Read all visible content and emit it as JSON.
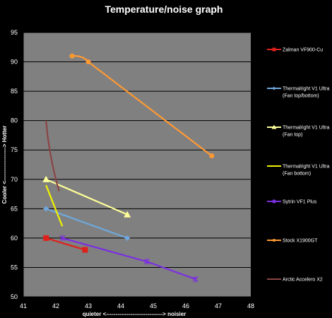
{
  "chart_data": {
    "type": "line",
    "title": "Temperature/noise graph",
    "xlabel": "quieter <------------------------------> noisier",
    "ylabel": "Cooler <------------------> Hotter",
    "xlim": [
      41,
      48
    ],
    "ylim": [
      50,
      95
    ],
    "x_ticks": [
      41,
      42,
      43,
      44,
      45,
      46,
      47,
      48
    ],
    "y_ticks": [
      50,
      55,
      60,
      65,
      70,
      75,
      80,
      85,
      90,
      95
    ],
    "grid": true,
    "legend_position": "right",
    "plot_background": "#808080",
    "series": [
      {
        "name": "Zalman VF900-Cu",
        "legend": [
          "Zalman VF900-Cu"
        ],
        "color": "#e0201a",
        "marker": "square",
        "x": [
          41.7,
          42.9
        ],
        "y": [
          60,
          58
        ]
      },
      {
        "name": "Thermalright V1 Ultra (Fan top/bottom)",
        "legend": [
          "Thermalright V1 Ultra",
          "(Fan top/bottom)"
        ],
        "color": "#6fa8dc",
        "marker": "diamond",
        "x": [
          41.7,
          44.2
        ],
        "y": [
          65,
          60
        ]
      },
      {
        "name": "Thermalright V1 Ultra (Fan top)",
        "legend": [
          "Thermalright V1 Ultra",
          "(Fan top)"
        ],
        "color": "#ffff99",
        "marker": "triangle",
        "x": [
          41.7,
          44.2
        ],
        "y": [
          70,
          64
        ]
      },
      {
        "name": "Thermalright V1 Ultra (Fan bottom)",
        "legend": [
          "Thermalright V1 Ultra",
          "(Fan bottom)"
        ],
        "color": "#f2f200",
        "marker": "none",
        "x": [
          41.7,
          42.2
        ],
        "y": [
          69,
          62
        ]
      },
      {
        "name": "Sytrin VF1 Plus",
        "legend": [
          "Sytrin VF1 Plus"
        ],
        "color": "#7b2fe0",
        "marker": "star",
        "x": [
          42.2,
          44.8,
          46.3
        ],
        "y": [
          60,
          56,
          53
        ]
      },
      {
        "name": "Stock X1900GT",
        "legend": [
          "Stock X1900GT"
        ],
        "color": "#ff9933",
        "marker": "circle",
        "x": [
          42.5,
          43.0,
          46.8
        ],
        "y": [
          91,
          90,
          74
        ]
      },
      {
        "name": "Arctic Accelero X2",
        "legend": [
          "Arctic Accelero X2"
        ],
        "color": "#8b4545",
        "marker": "none",
        "x": [
          41.7,
          42.1
        ],
        "y": [
          80,
          68
        ]
      }
    ]
  }
}
